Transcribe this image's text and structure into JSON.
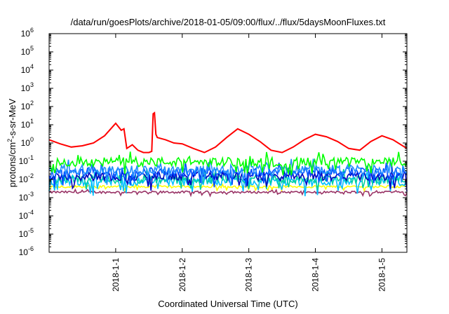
{
  "chart_data": {
    "type": "line",
    "title": "/data/run/goesPlots/archive/2018-01-05/09:00/flux/../flux/5daysMoonFluxes.txt",
    "xlabel": "Coordinated Universal Time (UTC)",
    "ylabel": "protons/cm²-s-sr-MeV",
    "y_scale": "log",
    "ylim": [
      1e-06,
      1000000.0
    ],
    "xlim": [
      "2017-12-31T00:00",
      "2018-01-05T09:00"
    ],
    "x_ticks": [
      "2018-1-1",
      "2018-1-2",
      "2018-1-3",
      "2018-1-4",
      "2018-1-5"
    ],
    "y_ticks": [
      {
        "base": "10",
        "exp": "-6"
      },
      {
        "base": "10",
        "exp": "-5"
      },
      {
        "base": "10",
        "exp": "-4"
      },
      {
        "base": "10",
        "exp": "-3"
      },
      {
        "base": "10",
        "exp": "-2"
      },
      {
        "base": "10",
        "exp": "-1"
      },
      {
        "base": "10",
        "exp": "0"
      },
      {
        "base": "10",
        "exp": "1"
      },
      {
        "base": "10",
        "exp": "2"
      },
      {
        "base": "10",
        "exp": "3"
      },
      {
        "base": "10",
        "exp": "4"
      },
      {
        "base": "10",
        "exp": "5"
      },
      {
        "base": "10",
        "exp": "6"
      }
    ],
    "grid": false,
    "legend": "none",
    "series": [
      {
        "color": "#ff0000",
        "x": [
          "2017-12-31T00:00",
          "2017-12-31T04:00",
          "2017-12-31T08:00",
          "2017-12-31T12:00",
          "2017-12-31T16:00",
          "2017-12-31T20:00",
          "2018-01-01T00:00",
          "2018-01-01T02:00",
          "2018-01-01T03:00",
          "2018-01-01T04:00",
          "2018-01-01T06:00",
          "2018-01-01T08:00",
          "2018-01-01T10:00",
          "2018-01-01T12:00",
          "2018-01-01T13:00",
          "2018-01-01T13:30",
          "2018-01-01T14:00",
          "2018-01-01T14:30",
          "2018-01-01T15:00",
          "2018-01-01T18:00",
          "2018-01-01T21:00",
          "2018-01-02T00:00",
          "2018-01-02T04:00",
          "2018-01-02T08:00",
          "2018-01-02T12:00",
          "2018-01-02T16:00",
          "2018-01-02T20:00",
          "2018-01-03T00:00",
          "2018-01-03T04:00",
          "2018-01-03T08:00",
          "2018-01-03T12:00",
          "2018-01-03T16:00",
          "2018-01-03T20:00",
          "2018-01-04T00:00",
          "2018-01-04T04:00",
          "2018-01-04T08:00",
          "2018-01-04T12:00",
          "2018-01-04T16:00",
          "2018-01-04T20:00",
          "2018-01-05T00:00",
          "2018-01-05T04:00",
          "2018-01-05T09:00"
        ],
        "y": [
          1.5,
          0.9,
          0.6,
          0.7,
          1.0,
          2.5,
          12,
          5,
          6,
          0.5,
          0.8,
          0.4,
          0.3,
          0.3,
          0.35,
          40,
          45,
          3,
          2,
          1.5,
          1.0,
          0.9,
          0.5,
          0.3,
          0.6,
          2,
          6,
          3,
          1.2,
          0.4,
          0.3,
          0.6,
          1.5,
          3,
          2.2,
          1.2,
          0.5,
          0.4,
          1.2,
          2.5,
          1.5,
          0.5
        ]
      },
      {
        "color": "#00ff00",
        "level": 0.09
      },
      {
        "color": "#1e90ff",
        "level": 0.035
      },
      {
        "color": "#0050ff",
        "level": 0.025
      },
      {
        "color": "#0000c0",
        "level": 0.015
      },
      {
        "color": "#00d0a0",
        "level": 0.01
      },
      {
        "color": "#00c0ff",
        "level": 0.008
      },
      {
        "color": "#ffff00",
        "level": 0.004
      },
      {
        "color": "#993366",
        "level": 0.002
      }
    ]
  }
}
